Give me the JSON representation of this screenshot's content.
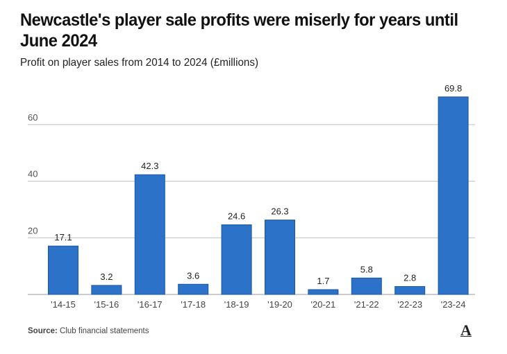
{
  "header": {
    "title": "Newcastle's player sale profits were miserly for years until June 2024",
    "subtitle": "Profit on player sales from 2014 to 2024 (£millions)"
  },
  "footer": {
    "source_label": "Source:",
    "source_text": " Club financial statements",
    "logo": "A"
  },
  "colors": {
    "bar": "#2b72c8",
    "bar_edge": "#1b55a0",
    "grid": "#bfbfbf",
    "axis": "#999999"
  },
  "chart_data": {
    "type": "bar",
    "title": "Newcastle's player sale profits were miserly for years until June 2024",
    "subtitle": "Profit on player sales from 2014 to 2024 (£millions)",
    "xlabel": "",
    "ylabel": "",
    "categories": [
      "'14-15",
      "'15-16",
      "'16-17",
      "'17-18",
      "'18-19",
      "'19-20",
      "'20-21",
      "'21-22",
      "'22-23",
      "'23-24"
    ],
    "values": [
      17.1,
      3.2,
      42.3,
      3.6,
      24.6,
      26.3,
      1.7,
      5.8,
      2.8,
      69.8
    ],
    "data_labels": [
      "17.1",
      "3.2",
      "42.3",
      "3.6",
      "24.6",
      "26.3",
      "1.7",
      "5.8",
      "2.8",
      "69.8"
    ],
    "yticks": [
      20,
      40,
      60
    ],
    "ylim": [
      0,
      70
    ],
    "grid": true,
    "legend": "none"
  }
}
